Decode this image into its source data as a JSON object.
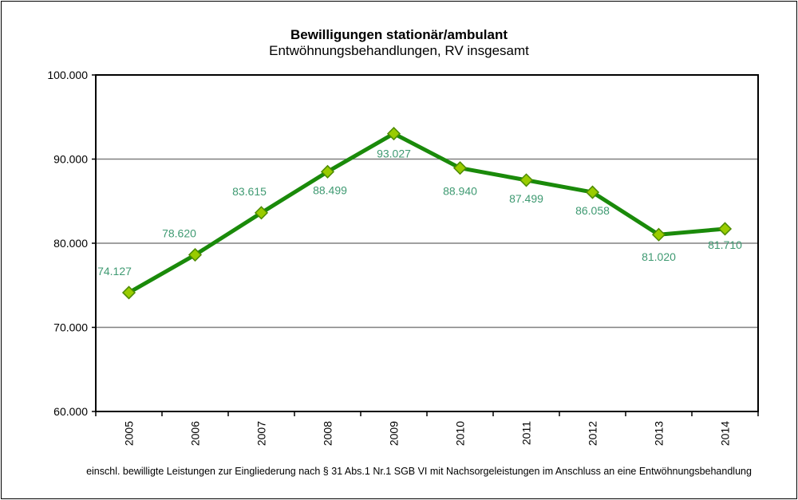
{
  "chart_data": {
    "type": "line",
    "title": "Bewilligungen stationär/ambulant",
    "subtitle": "Entwöhnungsbehandlungen, RV insgesamt",
    "footnote": "einschl. bewilligte Leistungen zur Eingliederung nach § 31 Abs.1 Nr.1 SGB VI mit Nachsorgeleistungen im Anschluss an eine Entwöhnungsbehandlung",
    "categories": [
      "2005",
      "2006",
      "2007",
      "2008",
      "2009",
      "2010",
      "2011",
      "2012",
      "2013",
      "2014"
    ],
    "values": [
      74127,
      78620,
      83615,
      88499,
      93027,
      88940,
      87499,
      86058,
      81020,
      81710
    ],
    "data_labels": [
      "74.127",
      "78.620",
      "83.615",
      "88.499",
      "93.027",
      "88.940",
      "87.499",
      "86.058",
      "81.020",
      "81.710"
    ],
    "ylim": [
      60000,
      100000
    ],
    "yticks": [
      60000,
      70000,
      80000,
      90000,
      100000
    ],
    "ytick_labels": [
      "60.000",
      "70.000",
      "80.000",
      "90.000",
      "100.000"
    ],
    "grid": true,
    "legend": "none",
    "colors": {
      "line": "#1a8a0a",
      "marker": "#99cc00",
      "marker_edge": "#4c8a00",
      "label": "#3f9a72",
      "grid": "#808080"
    }
  }
}
